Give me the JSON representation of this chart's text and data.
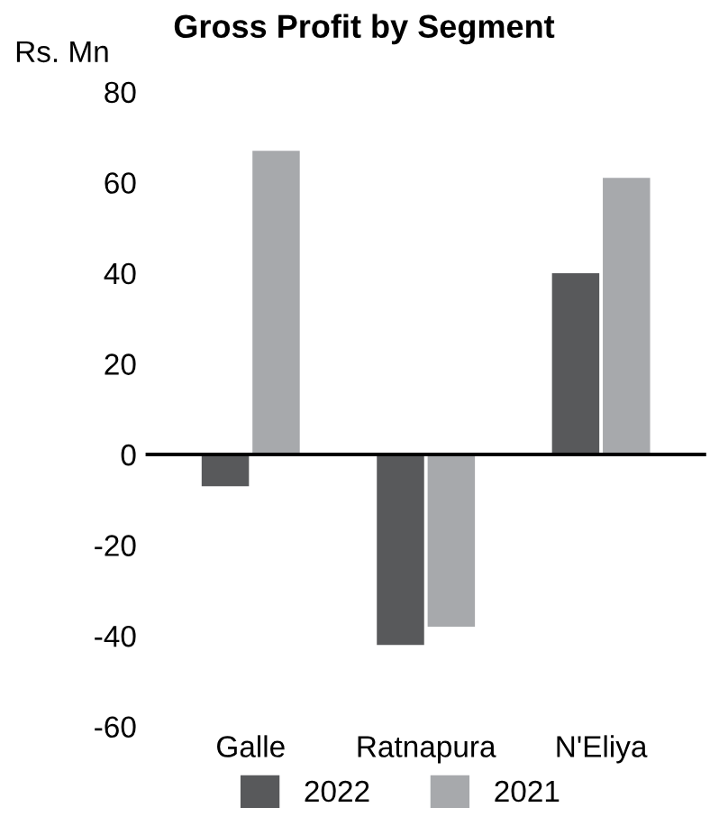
{
  "chart_data": {
    "type": "bar",
    "title": "Gross Profit by Segment",
    "ylabel": "Rs. Mn",
    "categories": [
      "Galle",
      "Ratnapura",
      "N'Eliya"
    ],
    "series": [
      {
        "name": "2022",
        "color": "#58595b",
        "values": [
          -7,
          -42,
          40
        ]
      },
      {
        "name": "2021",
        "color": "#a7a9ac",
        "values": [
          67,
          -38,
          61
        ]
      }
    ],
    "ylim": [
      -60,
      80
    ],
    "yticks": [
      -60,
      -40,
      -20,
      0,
      20,
      40,
      60,
      80
    ],
    "ref_lines": [
      {
        "axis": "y",
        "value": 0,
        "color": "#000000"
      }
    ],
    "grid": false,
    "legend": "bottom"
  }
}
